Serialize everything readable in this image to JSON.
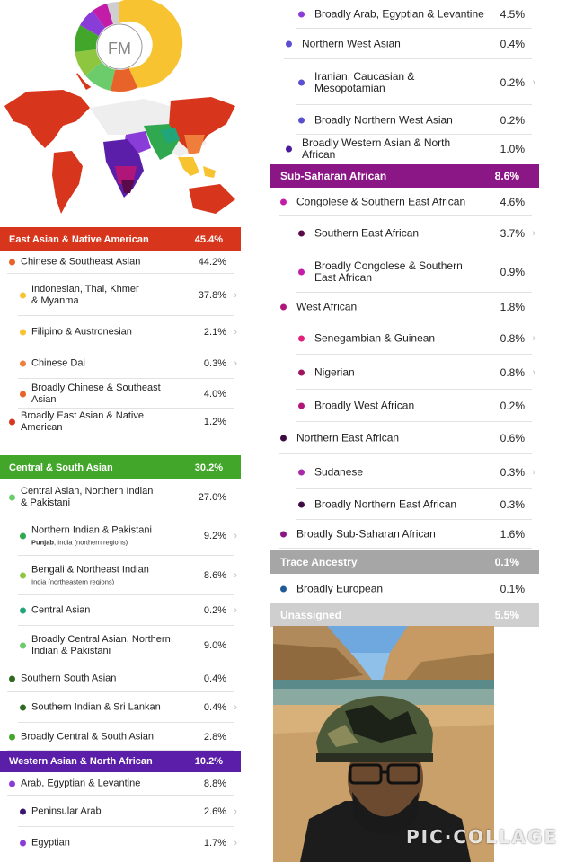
{
  "logo_initials": "FM",
  "colors": {
    "east_asian": "#d7351c",
    "central_south": "#41a62a",
    "western_asian": "#5a1ea8",
    "sub_saharan": "#8b1686",
    "trace": "#a6a6a6",
    "unassigned": "#cfcfcf"
  },
  "left": {
    "east_asian": {
      "header": {
        "label": "East Asian & Native American",
        "value": "45.4%"
      },
      "rows": [
        {
          "label": "Chinese & Southeast Asian",
          "value": "44.2%",
          "color": "#e8632a",
          "level": 1,
          "chevron": false
        },
        {
          "label": "Indonesian, Thai, Khmer\n& Myanma",
          "value": "37.8%",
          "color": "#f7c331",
          "level": 2,
          "chevron": true
        },
        {
          "label": "Filipino & Austronesian",
          "value": "2.1%",
          "color": "#f7c331",
          "level": 2,
          "chevron": true
        },
        {
          "label": "Chinese Dai",
          "value": "0.3%",
          "color": "#ef7e3c",
          "level": 2,
          "chevron": true
        },
        {
          "label": "Broadly Chinese & Southeast Asian",
          "value": "4.0%",
          "color": "#e8632a",
          "level": 2,
          "chevron": false
        },
        {
          "label": "Broadly East Asian & Native American",
          "value": "1.2%",
          "color": "#d7351c",
          "level": 1,
          "chevron": false
        }
      ]
    },
    "central_south": {
      "header": {
        "label": "Central & South Asian",
        "value": "30.2%"
      },
      "rows": [
        {
          "label": "Central Asian, Northern Indian\n& Pakistani",
          "value": "27.0%",
          "color": "#6ccc6c",
          "level": 1,
          "chevron": false
        },
        {
          "label": "Northern Indian & Pakistani",
          "sub_bold": "Punjab",
          "sub_rest": ", India (northern regions)",
          "value": "9.2%",
          "color": "#2fa84f",
          "level": 2,
          "chevron": true
        },
        {
          "label": "Bengali & Northeast Indian",
          "sub_bold": "",
          "sub_rest": "India (northeastern regions)",
          "value": "8.6%",
          "color": "#8ec63f",
          "level": 2,
          "chevron": true
        },
        {
          "label": "Central Asian",
          "value": "0.2%",
          "color": "#21a67a",
          "level": 2,
          "chevron": true
        },
        {
          "label": "Broadly Central Asian, Northern\nIndian & Pakistani",
          "value": "9.0%",
          "color": "#6ccc6c",
          "level": 2,
          "chevron": false
        },
        {
          "label": "Southern South Asian",
          "value": "0.4%",
          "color": "#2e6b1e",
          "level": 1,
          "chevron": false
        },
        {
          "label": "Southern Indian & Sri Lankan",
          "value": "0.4%",
          "color": "#2e6b1e",
          "level": 2,
          "chevron": true
        },
        {
          "label": "Broadly Central & South Asian",
          "value": "2.8%",
          "color": "#41a62a",
          "level": 1,
          "chevron": false
        }
      ]
    },
    "western_asian": {
      "header": {
        "label": "Western Asian & North African",
        "value": "10.2%"
      },
      "rows": [
        {
          "label": "Arab, Egyptian & Levantine",
          "value": "8.8%",
          "color": "#8a3cd9",
          "level": 1,
          "chevron": false
        },
        {
          "label": "Peninsular Arab",
          "value": "2.6%",
          "color": "#3a1670",
          "level": 2,
          "chevron": true
        },
        {
          "label": "Egyptian",
          "value": "1.7%",
          "color": "#8a3cd9",
          "level": 2,
          "chevron": true
        }
      ]
    }
  },
  "right": {
    "western_cont": [
      {
        "label": "Broadly Arab, Egyptian & Levantine",
        "value": "4.5%",
        "color": "#8a3cd9",
        "level": 2,
        "chevron": false
      },
      {
        "label": "Northern West Asian",
        "value": "0.4%",
        "color": "#5a4fcf",
        "level": 1,
        "chevron": false
      },
      {
        "label": "Iranian, Caucasian &\nMesopotamian",
        "value": "0.2%",
        "color": "#5a4fcf",
        "level": 2,
        "chevron": true
      },
      {
        "label": "Broadly Northern West Asian",
        "value": "0.2%",
        "color": "#5a4fcf",
        "level": 2,
        "chevron": false
      },
      {
        "label": "Broadly Western Asian & North African",
        "value": "1.0%",
        "color": "#4a1aa0",
        "level": 1,
        "chevron": false
      }
    ],
    "sub_saharan": {
      "header": {
        "label": "Sub-Saharan African",
        "value": "8.6%"
      },
      "rows": [
        {
          "label": "Congolese & Southern East African",
          "value": "4.6%",
          "color": "#c21ca8",
          "level": 1,
          "chevron": false
        },
        {
          "label": "Southern East African",
          "value": "3.7%",
          "color": "#5a0a4a",
          "level": 2,
          "chevron": true
        },
        {
          "label": "Broadly Congolese & Southern\nEast African",
          "value": "0.9%",
          "color": "#c21ca8",
          "level": 2,
          "chevron": false
        },
        {
          "label": "West African",
          "value": "1.8%",
          "color": "#b0157a",
          "level": 1,
          "chevron": false
        },
        {
          "label": "Senegambian & Guinean",
          "value": "0.8%",
          "color": "#e0207a",
          "level": 2,
          "chevron": true
        },
        {
          "label": "Nigerian",
          "value": "0.8%",
          "color": "#a0145e",
          "level": 2,
          "chevron": true
        },
        {
          "label": "Broadly West African",
          "value": "0.2%",
          "color": "#b0157a",
          "level": 2,
          "chevron": false
        },
        {
          "label": "Northern East African",
          "value": "0.6%",
          "color": "#3e0a44",
          "level": 1,
          "chevron": false
        },
        {
          "label": "Sudanese",
          "value": "0.3%",
          "color": "#a82aa8",
          "level": 2,
          "chevron": true
        },
        {
          "label": "Broadly Northern East African",
          "value": "0.3%",
          "color": "#3e0a44",
          "level": 2,
          "chevron": false
        },
        {
          "label": "Broadly Sub-Saharan African",
          "value": "1.6%",
          "color": "#8b1686",
          "level": 1,
          "chevron": false
        }
      ]
    },
    "trace": {
      "header": {
        "label": "Trace Ancestry",
        "value": "0.1%"
      },
      "rows": [
        {
          "label": "Broadly European",
          "value": "0.1%",
          "color": "#1f5b96",
          "level": 1,
          "chevron": false
        }
      ]
    },
    "unassigned": {
      "label": "Unassigned",
      "value": "5.5%"
    }
  },
  "watermark": "PIC·COLLAGE"
}
